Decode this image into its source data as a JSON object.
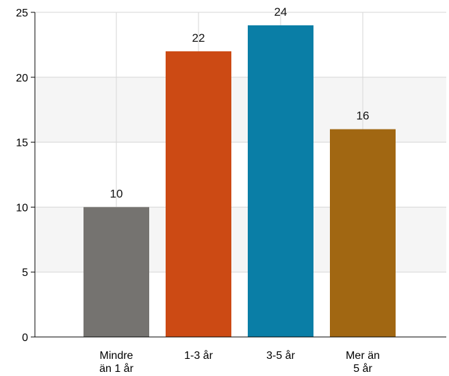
{
  "chart_data": {
    "type": "bar",
    "title": "",
    "xlabel": "",
    "ylabel": "",
    "categories": [
      [
        "Mindre",
        "än 1 år"
      ],
      [
        "1-3 år"
      ],
      [
        "3-5 år"
      ],
      [
        "Mer än",
        "5 år"
      ]
    ],
    "values": [
      10,
      22,
      24,
      16
    ],
    "ylim": [
      0,
      25
    ],
    "yticks": [
      0,
      5,
      10,
      15,
      20,
      25
    ],
    "grid": true,
    "alternating_bands": true,
    "data_labels": true,
    "colors": {
      "bars": [
        "#757370",
        "#cc4a14",
        "#0a7ea6",
        "#a16712"
      ],
      "band": "#f5f5f5",
      "gridline": "#d6d6d6",
      "axis": "#000000"
    }
  }
}
